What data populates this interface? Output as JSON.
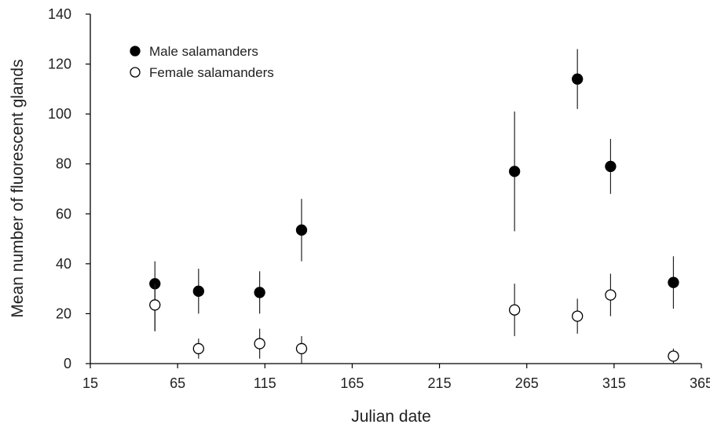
{
  "chart_data": {
    "type": "scatter",
    "title": "",
    "xlabel": "Julian date",
    "ylabel": "Mean number of fluorescent glands",
    "xlim": [
      15,
      365
    ],
    "ylim": [
      0,
      140
    ],
    "xticks": [
      "15",
      "65",
      "115",
      "165",
      "215",
      "265",
      "315",
      "365"
    ],
    "yticks": [
      "0",
      "20",
      "40",
      "60",
      "80",
      "100",
      "120",
      "140"
    ],
    "grid": false,
    "legend_position": "top-left",
    "error_bars": true,
    "series": [
      {
        "name": "Male salamanders",
        "marker": "filled-circle",
        "color": "#000000",
        "points": [
          {
            "x": 52,
            "y": 32,
            "low": 13,
            "high": 41
          },
          {
            "x": 77,
            "y": 29,
            "low": 20,
            "high": 38
          },
          {
            "x": 112,
            "y": 28.5,
            "low": 20,
            "high": 37
          },
          {
            "x": 136,
            "y": 53.5,
            "low": 41,
            "high": 66
          },
          {
            "x": 258,
            "y": 77,
            "low": 53,
            "high": 101
          },
          {
            "x": 294,
            "y": 114,
            "low": 102,
            "high": 126
          },
          {
            "x": 313,
            "y": 79,
            "low": 68,
            "high": 90
          },
          {
            "x": 349,
            "y": 32.5,
            "low": 22,
            "high": 43
          }
        ]
      },
      {
        "name": "Female salamanders",
        "marker": "open-circle",
        "color": "#000000",
        "points": [
          {
            "x": 52,
            "y": 23.5,
            "low": 13,
            "high": 32
          },
          {
            "x": 77,
            "y": 6,
            "low": 2,
            "high": 10
          },
          {
            "x": 112,
            "y": 8,
            "low": 2,
            "high": 14
          },
          {
            "x": 136,
            "y": 6,
            "low": 0,
            "high": 11
          },
          {
            "x": 258,
            "y": 21.5,
            "low": 11,
            "high": 32
          },
          {
            "x": 294,
            "y": 19,
            "low": 12,
            "high": 26
          },
          {
            "x": 313,
            "y": 27.5,
            "low": 19,
            "high": 36
          },
          {
            "x": 349,
            "y": 3,
            "low": 0,
            "high": 6
          }
        ]
      }
    ]
  }
}
